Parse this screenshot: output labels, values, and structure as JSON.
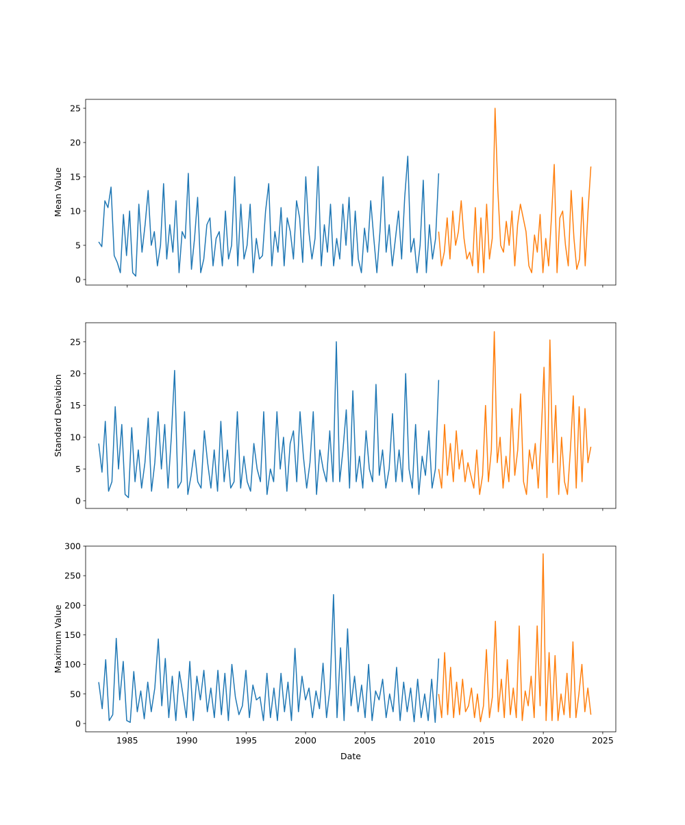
{
  "chart_data": {
    "type": "line",
    "xlabel": "Date",
    "x_ticks": [
      1985,
      1990,
      1995,
      2000,
      2005,
      2010,
      2015,
      2020,
      2025
    ],
    "xlim": [
      1981.5,
      2026.1
    ],
    "colors": {
      "historical": "#1f77b4",
      "recent": "#ff7f0e"
    },
    "panels": [
      {
        "ylabel": "Mean Value",
        "ylim": [
          -0.8,
          26.3
        ],
        "y_ticks": [
          0,
          5,
          10,
          15,
          20,
          25
        ],
        "series": [
          {
            "name": "historical",
            "x_start": 1982.6,
            "x_end": 2011.2,
            "values": [
              5.5,
              4.8,
              11.5,
              10.5,
              13.5,
              3.5,
              2.5,
              1,
              9.5,
              3.5,
              10,
              1,
              0.5,
              11,
              4,
              8,
              13,
              5,
              7,
              2,
              5,
              14,
              3,
              8,
              4,
              11.5,
              1,
              7,
              6,
              15.5,
              1.5,
              6,
              12,
              1,
              3,
              8,
              9,
              2,
              6,
              7,
              2,
              10,
              3,
              5,
              15,
              2,
              11,
              3,
              5,
              11,
              1,
              6,
              3,
              3.5,
              10,
              14,
              2,
              7,
              4,
              10.5,
              2,
              9,
              7,
              3,
              11.5,
              9,
              2.5,
              15,
              7,
              3,
              6,
              16.5,
              2,
              8,
              4,
              11,
              2,
              6,
              3,
              11,
              5,
              12,
              2,
              10,
              3,
              1,
              7.5,
              4,
              11.5,
              6,
              1,
              7,
              15,
              4,
              8,
              2,
              6,
              10,
              3,
              12,
              18,
              4,
              6,
              1,
              5,
              14.5,
              1,
              8,
              3,
              6,
              15.5
            ]
          },
          {
            "name": "recent",
            "x_start": 2011.2,
            "x_end": 2024.0,
            "values": [
              7,
              2,
              4,
              9,
              3,
              10,
              5,
              7,
              11.5,
              6,
              3,
              4,
              2,
              10.5,
              1,
              9,
              1,
              11,
              3,
              6,
              25,
              13,
              5,
              4,
              8.5,
              5,
              10,
              2,
              8,
              11,
              9,
              7,
              2,
              1,
              6.5,
              4,
              9.5,
              1,
              6,
              2,
              9,
              16.8,
              1,
              9,
              10,
              5,
              2,
              13,
              6,
              1.5,
              3,
              12,
              2,
              10,
              16.5
            ]
          }
        ]
      },
      {
        "ylabel": "Standard Deviation",
        "ylim": [
          -1.2,
          28.0
        ],
        "y_ticks": [
          0,
          5,
          10,
          15,
          20,
          25
        ],
        "series": [
          {
            "name": "historical",
            "x_start": 1982.6,
            "x_end": 2011.2,
            "values": [
              9,
              4.5,
              12.5,
              1.5,
              3,
              14.8,
              5,
              12,
              1,
              0.5,
              11.5,
              3,
              8,
              2,
              6,
              13,
              1.5,
              6,
              14,
              5,
              12,
              2,
              10,
              20.5,
              2,
              3,
              14,
              1,
              4,
              8,
              3,
              2,
              11,
              6,
              2,
              8,
              1.5,
              12.5,
              3,
              8,
              2,
              3,
              14,
              2,
              7,
              3,
              1.5,
              9,
              5,
              3,
              14,
              1,
              5,
              3,
              14,
              5,
              10,
              1.5,
              9,
              11,
              3,
              14,
              7,
              2,
              6,
              14,
              1,
              8,
              5,
              3,
              11,
              3,
              25,
              3,
              8,
              14.3,
              2,
              17.3,
              3,
              7,
              2,
              11,
              5,
              3,
              18.3,
              4,
              8,
              2,
              5,
              13.7,
              3,
              8,
              3,
              20,
              5,
              2,
              12,
              1,
              7,
              4,
              11,
              2,
              5,
              19
            ]
          },
          {
            "name": "recent",
            "x_start": 2011.2,
            "x_end": 2024.0,
            "values": [
              5,
              2,
              12,
              4,
              9,
              3,
              11,
              5,
              8,
              3,
              6,
              4,
              2,
              8,
              1,
              4,
              15,
              3,
              8,
              26.6,
              6,
              10,
              2,
              7,
              3,
              14.5,
              4,
              8,
              16.8,
              3,
              1,
              8,
              5,
              9,
              2,
              10,
              21,
              0.5,
              25.3,
              6,
              15,
              1,
              10,
              3,
              1,
              8,
              16.5,
              2,
              14.8,
              3,
              14.5,
              6,
              8.5
            ]
          }
        ]
      },
      {
        "ylabel": "Maximum Value",
        "ylim": [
          -14,
          300
        ],
        "y_ticks": [
          0,
          50,
          100,
          150,
          200,
          250,
          300
        ],
        "series": [
          {
            "name": "historical",
            "x_start": 1982.6,
            "x_end": 2011.2,
            "values": [
              70,
              25,
              108,
              5,
              15,
              144,
              40,
              105,
              5,
              2,
              88,
              20,
              55,
              8,
              70,
              20,
              60,
              143,
              30,
              110,
              10,
              80,
              5,
              88,
              50,
              10,
              105,
              5,
              80,
              40,
              90,
              20,
              60,
              10,
              90,
              15,
              85,
              5,
              100,
              45,
              15,
              30,
              90,
              10,
              65,
              40,
              45,
              5,
              85,
              10,
              60,
              5,
              85,
              20,
              70,
              5,
              127,
              20,
              80,
              40,
              60,
              10,
              55,
              25,
              102,
              10,
              60,
              218,
              10,
              128,
              5,
              160,
              30,
              80,
              20,
              65,
              10,
              100,
              5,
              55,
              40,
              75,
              10,
              50,
              20,
              95,
              5,
              70,
              20,
              60,
              3,
              75,
              10,
              50,
              5,
              75,
              2,
              110
            ]
          },
          {
            "name": "recent",
            "x_start": 2011.2,
            "x_end": 2024.0,
            "values": [
              50,
              10,
              120,
              15,
              95,
              10,
              70,
              15,
              75,
              20,
              30,
              60,
              10,
              50,
              3,
              30,
              125,
              10,
              45,
              173,
              20,
              75,
              10,
              108,
              15,
              60,
              10,
              165,
              5,
              55,
              30,
              80,
              10,
              165,
              30,
              287,
              5,
              120,
              5,
              115,
              5,
              50,
              15,
              85,
              10,
              138,
              10,
              50,
              100,
              20,
              60,
              15
            ]
          }
        ]
      }
    ]
  }
}
